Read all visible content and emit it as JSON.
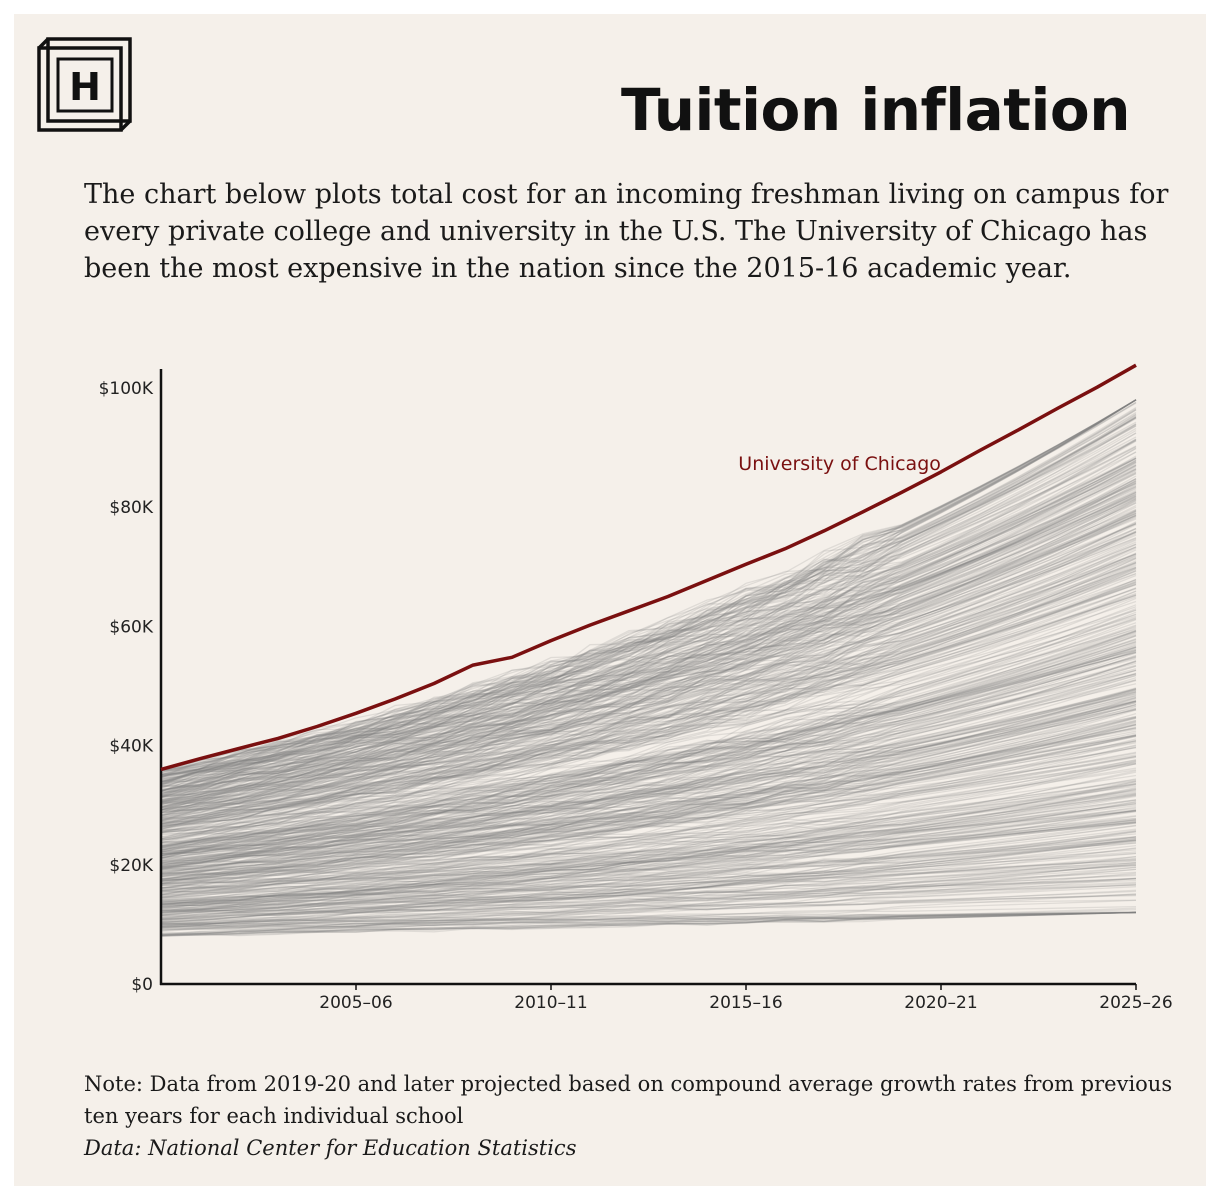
{
  "header": {
    "logo_letter": "H",
    "title": "Tuition inflation",
    "subtitle": "The chart below plots total cost for an incoming freshman living on campus for every private college and university in the U.S. The University of Chicago has been the most expensive in the nation since the 2015-16 academic year."
  },
  "footer": {
    "note": "Note: Data from 2019-20 and later projected based on compound average growth rates from previous ten years for each individual school",
    "source": "Data: National Center for Education Statistics"
  },
  "colors": {
    "background": "#f5f0ea",
    "highlight": "#7a1010",
    "other_schools": "#808080"
  },
  "chart_data": {
    "type": "line",
    "title": "",
    "xlabel": "",
    "ylabel": "",
    "x_start_year": "2000–01",
    "x_end_year": "2025–26",
    "x_ticks": [
      "2005–06",
      "2010–11",
      "2015–16",
      "2020–21",
      "2025–26"
    ],
    "x_tick_years": [
      2005,
      2010,
      2015,
      2020,
      2025
    ],
    "y_ticks": [
      "$0",
      "$20K",
      "$40K",
      "$60K",
      "$80K",
      "$100K"
    ],
    "y_tick_values": [
      0,
      20000,
      40000,
      60000,
      80000,
      100000
    ],
    "ylim": [
      0,
      104000
    ],
    "grid": false,
    "highlight_label": "University of Chicago",
    "series": [
      {
        "name": "University of Chicago",
        "color": "#7a1010",
        "x": [
          2000,
          2001,
          2002,
          2003,
          2004,
          2005,
          2006,
          2007,
          2008,
          2009,
          2010,
          2011,
          2012,
          2013,
          2014,
          2015,
          2016,
          2017,
          2018,
          2019,
          2020,
          2021,
          2022,
          2023,
          2024,
          2025
        ],
        "values": [
          36000,
          37800,
          39500,
          41200,
          43200,
          45400,
          47800,
          50400,
          53500,
          54800,
          57600,
          60200,
          62600,
          65000,
          67700,
          70400,
          73000,
          76000,
          79200,
          82500,
          85900,
          89500,
          93000,
          96600,
          100100,
          103800
        ]
      }
    ],
    "other_schools_count": 600,
    "other_schools_range_2000": [
      8000,
      36000
    ],
    "other_schools_range_2025": [
      12000,
      98000
    ]
  }
}
